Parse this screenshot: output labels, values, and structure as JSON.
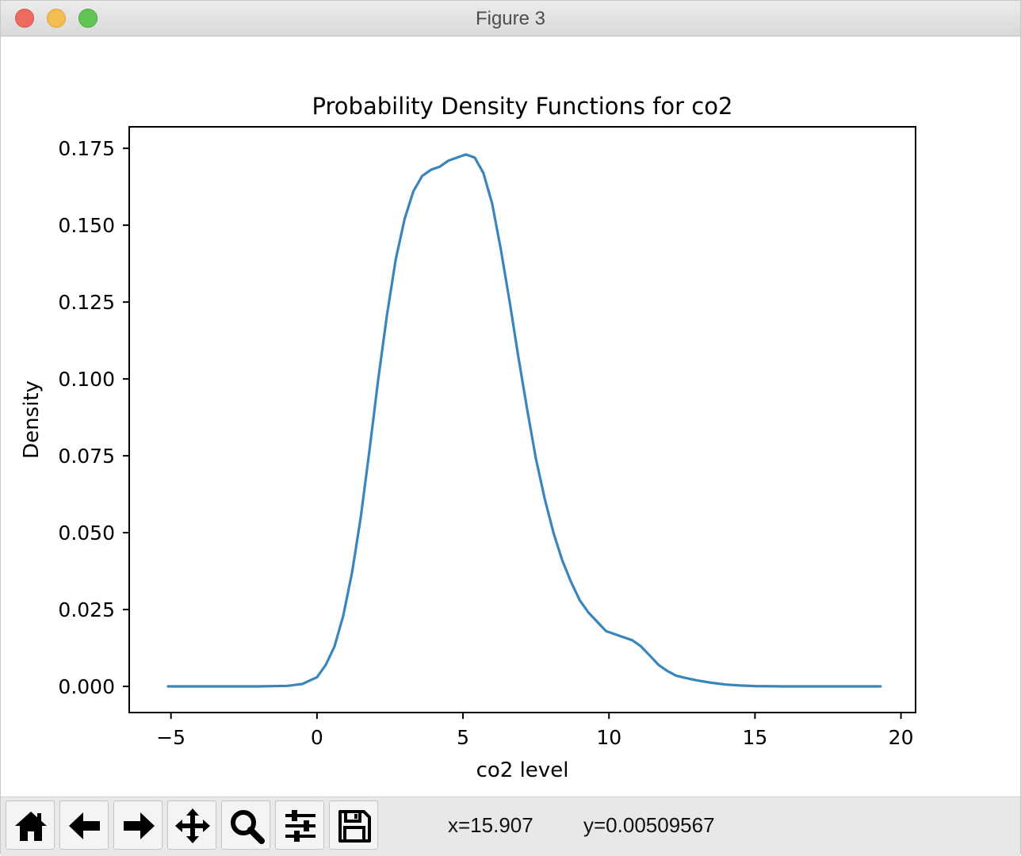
{
  "window": {
    "title": "Figure 3"
  },
  "chart_data": {
    "type": "line",
    "title": "Probability Density Functions for co2",
    "xlabel": "co2 level",
    "ylabel": "Density",
    "xlim": [
      -6.43,
      20.5
    ],
    "ylim": [
      -0.0085,
      0.182
    ],
    "xticks": [
      -5,
      0,
      5,
      10,
      15,
      20
    ],
    "xtick_labels": [
      "−5",
      "0",
      "5",
      "10",
      "15",
      "20"
    ],
    "yticks": [
      0.0,
      0.025,
      0.05,
      0.075,
      0.1,
      0.125,
      0.15,
      0.175
    ],
    "ytick_labels": [
      "0.000",
      "0.025",
      "0.050",
      "0.075",
      "0.100",
      "0.125",
      "0.150",
      "0.175"
    ],
    "grid": false,
    "series": [
      {
        "color": "#3a85bb",
        "x": [
          -5.1,
          -4,
          -3,
          -2,
          -1,
          -0.5,
          0,
          0.3,
          0.6,
          0.9,
          1.2,
          1.5,
          1.8,
          2.1,
          2.4,
          2.7,
          3,
          3.3,
          3.6,
          3.9,
          4.2,
          4.5,
          4.8,
          5.1,
          5.4,
          5.7,
          6,
          6.3,
          6.6,
          6.9,
          7.2,
          7.5,
          7.8,
          8.1,
          8.4,
          8.7,
          9,
          9.3,
          9.6,
          9.9,
          10.2,
          10.5,
          10.8,
          11.1,
          11.4,
          11.7,
          12,
          12.3,
          12.6,
          13,
          13.5,
          14,
          14.5,
          15,
          16,
          17,
          18,
          19.3
        ],
        "y": [
          0.0,
          0.0,
          0.0,
          0.0,
          0.0002,
          0.0008,
          0.003,
          0.007,
          0.013,
          0.023,
          0.037,
          0.055,
          0.077,
          0.1,
          0.121,
          0.139,
          0.152,
          0.161,
          0.166,
          0.168,
          0.169,
          0.171,
          0.172,
          0.173,
          0.172,
          0.167,
          0.157,
          0.142,
          0.125,
          0.107,
          0.09,
          0.074,
          0.061,
          0.05,
          0.041,
          0.034,
          0.028,
          0.024,
          0.021,
          0.018,
          0.017,
          0.016,
          0.015,
          0.013,
          0.01,
          0.007,
          0.005,
          0.0035,
          0.0028,
          0.002,
          0.0012,
          0.0006,
          0.0003,
          0.0001,
          0.0,
          0.0,
          0.0,
          0.0
        ]
      }
    ]
  },
  "toolbar": {
    "icons": [
      "home-icon",
      "back-arrow-icon",
      "forward-arrow-icon",
      "pan-icon",
      "zoom-icon",
      "subplots-icon",
      "save-icon"
    ],
    "coord_x": "x=15.907",
    "coord_y": "y=0.00509567"
  }
}
